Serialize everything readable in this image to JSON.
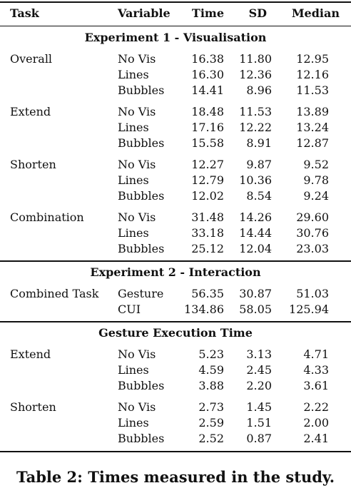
{
  "table": {
    "headers": [
      "Task",
      "Variable",
      "Time",
      "SD",
      "Median"
    ],
    "sections": [
      {
        "title": "Experiment 1 - Visualisation",
        "groups": [
          {
            "task": "Overall",
            "rows": [
              {
                "variable": "No Vis",
                "time": "16.38",
                "sd": "11.80",
                "median": "12.95"
              },
              {
                "variable": "Lines",
                "time": "16.30",
                "sd": "12.36",
                "median": "12.16"
              },
              {
                "variable": "Bubbles",
                "time": "14.41",
                "sd": "8.96",
                "median": "11.53"
              }
            ]
          },
          {
            "task": "Extend",
            "rows": [
              {
                "variable": "No Vis",
                "time": "18.48",
                "sd": "11.53",
                "median": "13.89"
              },
              {
                "variable": "Lines",
                "time": "17.16",
                "sd": "12.22",
                "median": "13.24"
              },
              {
                "variable": "Bubbles",
                "time": "15.58",
                "sd": "8.91",
                "median": "12.87"
              }
            ]
          },
          {
            "task": "Shorten",
            "rows": [
              {
                "variable": "No Vis",
                "time": "12.27",
                "sd": "9.87",
                "median": "9.52"
              },
              {
                "variable": "Lines",
                "time": "12.79",
                "sd": "10.36",
                "median": "9.78"
              },
              {
                "variable": "Bubbles",
                "time": "12.02",
                "sd": "8.54",
                "median": "9.24"
              }
            ]
          },
          {
            "task": "Combination",
            "rows": [
              {
                "variable": "No Vis",
                "time": "31.48",
                "sd": "14.26",
                "median": "29.60"
              },
              {
                "variable": "Lines",
                "time": "33.18",
                "sd": "14.44",
                "median": "30.76"
              },
              {
                "variable": "Bubbles",
                "time": "25.12",
                "sd": "12.04",
                "median": "23.03"
              }
            ]
          }
        ]
      },
      {
        "title": "Experiment 2 - Interaction",
        "groups": [
          {
            "task": "Combined Task",
            "rows": [
              {
                "variable": "Gesture",
                "time": "56.35",
                "sd": "30.87",
                "median": "51.03"
              },
              {
                "variable": "CUI",
                "time": "134.86",
                "sd": "58.05",
                "median": "125.94"
              }
            ]
          }
        ]
      },
      {
        "title": "Gesture Execution Time",
        "groups": [
          {
            "task": "Extend",
            "rows": [
              {
                "variable": "No Vis",
                "time": "5.23",
                "sd": "3.13",
                "median": "4.71"
              },
              {
                "variable": "Lines",
                "time": "4.59",
                "sd": "2.45",
                "median": "4.33"
              },
              {
                "variable": "Bubbles",
                "time": "3.88",
                "sd": "2.20",
                "median": "3.61"
              }
            ]
          },
          {
            "task": "Shorten",
            "rows": [
              {
                "variable": "No Vis",
                "time": "2.73",
                "sd": "1.45",
                "median": "2.22"
              },
              {
                "variable": "Lines",
                "time": "2.59",
                "sd": "1.51",
                "median": "2.00"
              },
              {
                "variable": "Bubbles",
                "time": "2.52",
                "sd": "0.87",
                "median": "2.41"
              }
            ]
          }
        ]
      }
    ]
  },
  "caption": "Table 2: Times measured in the study."
}
